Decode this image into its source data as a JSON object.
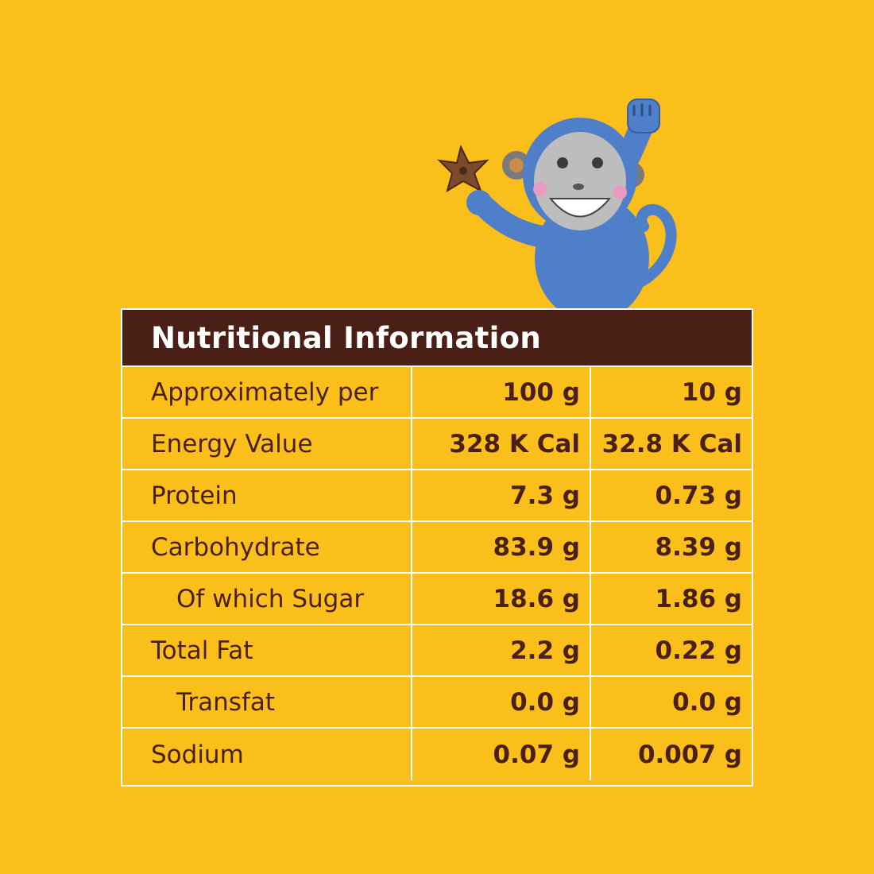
{
  "panel": {
    "title": "Nutritional Information",
    "illustration": "monkey-mascot-holding-star-cereal",
    "colors": {
      "background": "#FBBF1C",
      "header": "#4A1F16",
      "text": "#4A1F16",
      "lines": "#ffffff"
    }
  },
  "rows": [
    {
      "label": "Approximately per",
      "v100": "100 g",
      "v10": "10 g",
      "indent": false
    },
    {
      "label": "Energy Value",
      "v100": "328 K Cal",
      "v10": "32.8 K Cal",
      "indent": false
    },
    {
      "label": "Protein",
      "v100": "7.3 g",
      "v10": "0.73 g",
      "indent": false
    },
    {
      "label": "Carbohydrate",
      "v100": "83.9 g",
      "v10": "8.39 g",
      "indent": false
    },
    {
      "label": "Of which Sugar",
      "v100": "18.6 g",
      "v10": "1.86 g",
      "indent": true
    },
    {
      "label": "Total Fat",
      "v100": "2.2 g",
      "v10": "0.22 g",
      "indent": false
    },
    {
      "label": "Transfat",
      "v100": "0.0 g",
      "v10": "0.0 g",
      "indent": true
    },
    {
      "label": "Sodium",
      "v100": "0.07 g",
      "v10": "0.007 g",
      "indent": false
    }
  ]
}
